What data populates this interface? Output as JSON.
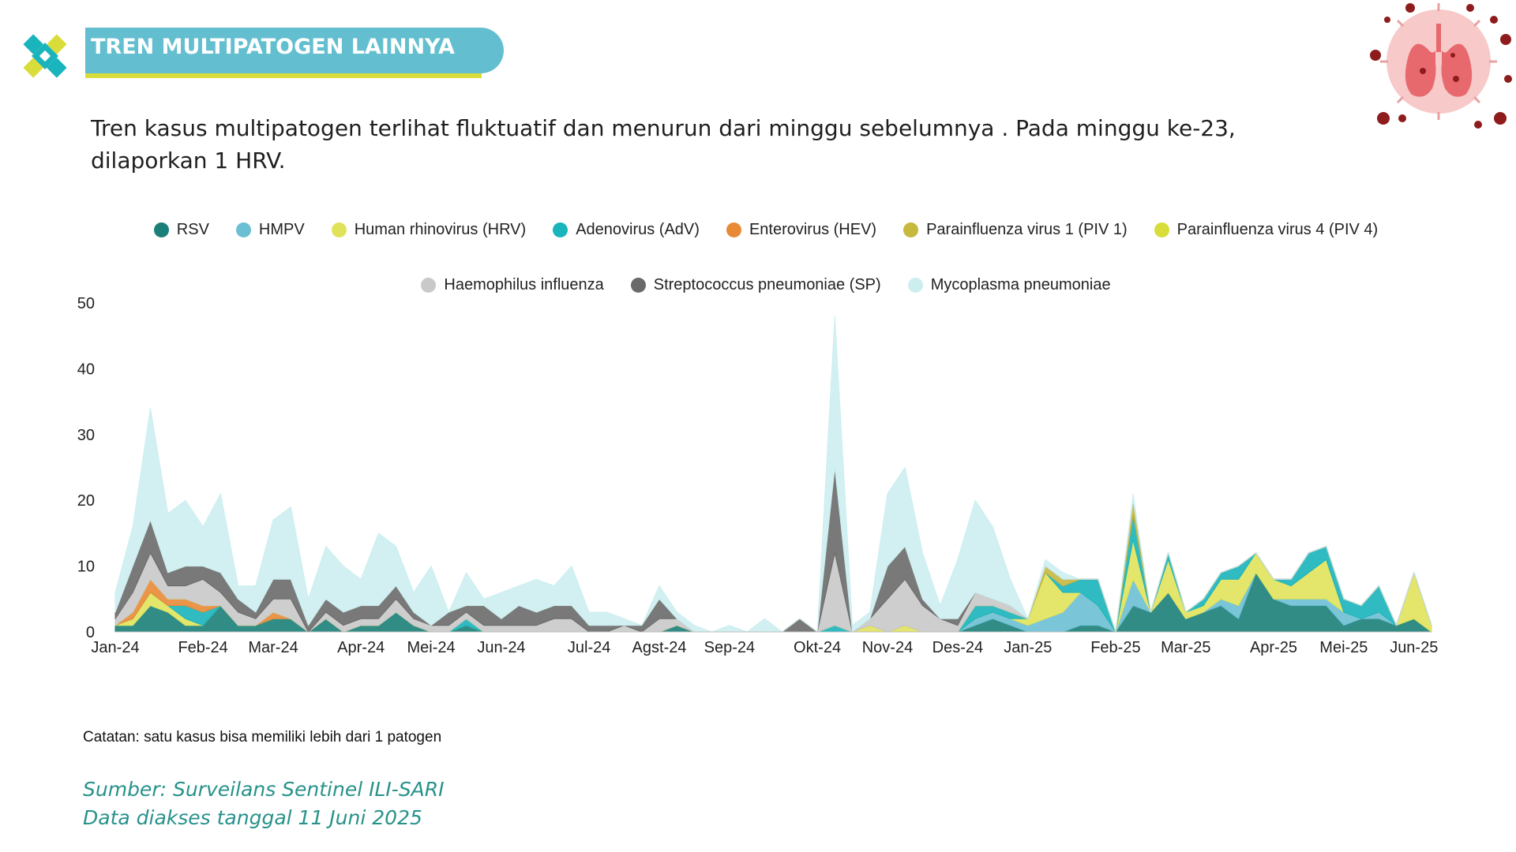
{
  "header": {
    "title": "TREN MULTIPATOGEN LAINNYA",
    "description": "Tren kasus multipatogen terlihat fluktuatif dan menurun dari minggu sebelumnya . Pada minggu ke-23, dilaporkan 1 HRV."
  },
  "icons": {
    "logo": "kemenkes-logo-icon",
    "decoration": "lungs-virus-icon"
  },
  "colors": {
    "title_bar": "#63bfcf",
    "title_underline": "#d9dd3a",
    "source_text": "#27928a"
  },
  "chart_data": {
    "type": "area",
    "stacked": true,
    "title": "",
    "xlabel": "",
    "ylabel": "",
    "ylim": [
      0,
      50
    ],
    "y_ticks": [
      0,
      10,
      20,
      30,
      40,
      50
    ],
    "grid": false,
    "legend_position": "top",
    "x_tick_labels": [
      {
        "label": "Jan-24",
        "week": 0
      },
      {
        "label": "Feb-24",
        "week": 5
      },
      {
        "label": "Mar-24",
        "week": 9
      },
      {
        "label": "Apr-24",
        "week": 14
      },
      {
        "label": "Mei-24",
        "week": 18
      },
      {
        "label": "Jun-24",
        "week": 22
      },
      {
        "label": "Jul-24",
        "week": 27
      },
      {
        "label": "Agst-24",
        "week": 31
      },
      {
        "label": "Sep-24",
        "week": 35
      },
      {
        "label": "Okt-24",
        "week": 40
      },
      {
        "label": "Nov-24",
        "week": 44
      },
      {
        "label": "Des-24",
        "week": 48
      },
      {
        "label": "Jan-25",
        "week": 52
      },
      {
        "label": "Feb-25",
        "week": 57
      },
      {
        "label": "Mar-25",
        "week": 61
      },
      {
        "label": "Apr-25",
        "week": 66
      },
      {
        "label": "Mei-25",
        "week": 70
      },
      {
        "label": "Jun-25",
        "week": 74
      }
    ],
    "series": [
      {
        "name": "RSV",
        "color": "#1a7f78",
        "values": [
          1,
          1,
          4,
          3,
          1,
          1,
          4,
          1,
          1,
          2,
          2,
          0,
          2,
          0,
          1,
          1,
          3,
          1,
          0,
          0,
          1,
          0,
          0,
          0,
          0,
          0,
          0,
          0,
          0,
          0,
          0,
          0,
          1,
          0,
          0,
          0,
          0,
          0,
          0,
          0,
          0,
          0,
          0,
          0,
          0,
          0,
          0,
          0,
          0,
          1,
          2,
          1,
          0,
          0,
          0,
          1,
          1,
          0,
          4,
          3,
          6,
          2,
          3,
          4,
          2,
          9,
          5,
          4,
          4,
          4,
          1,
          2,
          2,
          1,
          2,
          0
        ]
      },
      {
        "name": "HMPV",
        "color": "#6cbfd3",
        "values": [
          0,
          0,
          0,
          0,
          0,
          0,
          0,
          0,
          0,
          0,
          0,
          0,
          0,
          0,
          0,
          0,
          0,
          0,
          0,
          0,
          0,
          0,
          0,
          0,
          0,
          0,
          0,
          0,
          0,
          0,
          0,
          0,
          0,
          0,
          0,
          0,
          0,
          0,
          0,
          0,
          0,
          0,
          0,
          0,
          0,
          0,
          0,
          0,
          0,
          1,
          1,
          1,
          1,
          2,
          3,
          5,
          3,
          0,
          4,
          0,
          0,
          0,
          0,
          1,
          2,
          0,
          0,
          1,
          1,
          1,
          2,
          0,
          1,
          0,
          0,
          0
        ]
      },
      {
        "name": "Human rhinovirus (HRV)",
        "color": "#e0e35a",
        "values": [
          0,
          1,
          2,
          1,
          1,
          0,
          0,
          0,
          0,
          0,
          0,
          0,
          0,
          0,
          0,
          0,
          0,
          0,
          0,
          0,
          0,
          0,
          0,
          0,
          0,
          0,
          0,
          0,
          0,
          0,
          0,
          0,
          0,
          0,
          0,
          0,
          0,
          0,
          0,
          0,
          0,
          0,
          0,
          1,
          0,
          1,
          0,
          0,
          0,
          0,
          0,
          0,
          1,
          7,
          3,
          0,
          0,
          0,
          6,
          0,
          5,
          1,
          1,
          3,
          4,
          3,
          3,
          2,
          4,
          6,
          0,
          0,
          0,
          0,
          7,
          1
        ]
      },
      {
        "name": "Adenovirus (AdV)",
        "color": "#1ab4bd",
        "values": [
          0,
          0,
          0,
          0,
          2,
          2,
          0,
          0,
          0,
          0,
          0,
          0,
          0,
          0,
          0,
          0,
          0,
          0,
          0,
          0,
          1,
          0,
          0,
          0,
          0,
          0,
          0,
          0,
          0,
          0,
          0,
          0,
          0,
          0,
          0,
          0,
          0,
          0,
          0,
          0,
          0,
          1,
          0,
          0,
          0,
          0,
          0,
          0,
          0,
          2,
          1,
          1,
          0,
          0,
          1,
          2,
          4,
          0,
          4,
          0,
          1,
          0,
          1,
          1,
          2,
          0,
          0,
          1,
          3,
          2,
          2,
          2,
          4,
          0,
          0,
          0
        ]
      },
      {
        "name": "Enterovirus (HEV)",
        "color": "#e88a35",
        "values": [
          0,
          1,
          2,
          1,
          1,
          1,
          0,
          0,
          0,
          1,
          0,
          0,
          0,
          0,
          0,
          0,
          0,
          0,
          0,
          0,
          0,
          0,
          0,
          0,
          0,
          0,
          0,
          0,
          0,
          0,
          0,
          0,
          0,
          0,
          0,
          0,
          0,
          0,
          0,
          0,
          0,
          0,
          0,
          0,
          0,
          0,
          0,
          0,
          0,
          0,
          0,
          0,
          0,
          0,
          0,
          0,
          0,
          0,
          0,
          0,
          0,
          0,
          0,
          0,
          0,
          0,
          0,
          0,
          0,
          0,
          0,
          0,
          0,
          0,
          0,
          0
        ]
      },
      {
        "name": "Parainfluenza virus 1 (PIV 1)",
        "color": "#c7b83e",
        "values": [
          0,
          0,
          0,
          0,
          0,
          0,
          0,
          0,
          0,
          0,
          0,
          0,
          0,
          0,
          0,
          0,
          0,
          0,
          0,
          0,
          0,
          0,
          0,
          0,
          0,
          0,
          0,
          0,
          0,
          0,
          0,
          0,
          0,
          0,
          0,
          0,
          0,
          0,
          0,
          0,
          0,
          0,
          0,
          0,
          0,
          0,
          0,
          0,
          0,
          0,
          0,
          0,
          0,
          1,
          1,
          0,
          0,
          0,
          2,
          0,
          0,
          0,
          0,
          0,
          0,
          0,
          0,
          0,
          0,
          0,
          0,
          0,
          0,
          0,
          0,
          0
        ]
      },
      {
        "name": "Parainfluenza virus 4 (PIV 4)",
        "color": "#d9dd3a",
        "values": [
          0,
          0,
          0,
          0,
          0,
          0,
          0,
          0,
          0,
          0,
          0,
          0,
          0,
          0,
          0,
          0,
          0,
          0,
          0,
          0,
          0,
          0,
          0,
          0,
          0,
          0,
          0,
          0,
          0,
          0,
          0,
          0,
          0,
          0,
          0,
          0,
          0,
          0,
          0,
          0,
          0,
          0,
          0,
          0,
          0,
          0,
          0,
          0,
          0,
          0,
          0,
          0,
          0,
          0,
          0,
          0,
          0,
          0,
          0,
          0,
          0,
          0,
          0,
          0,
          0,
          0,
          0,
          0,
          0,
          0,
          0,
          0,
          0,
          0,
          0,
          0
        ]
      },
      {
        "name": "Haemophilus influenza",
        "color": "#c9c9c9",
        "values": [
          1,
          3,
          4,
          2,
          2,
          4,
          2,
          2,
          1,
          2,
          3,
          0,
          1,
          1,
          1,
          1,
          2,
          1,
          1,
          1,
          1,
          1,
          1,
          1,
          1,
          2,
          2,
          0,
          0,
          1,
          0,
          2,
          1,
          0,
          0,
          0,
          0,
          0,
          0,
          0,
          0,
          11,
          0,
          1,
          5,
          7,
          4,
          2,
          1,
          2,
          1,
          1,
          0,
          0,
          0,
          0,
          0,
          0,
          0,
          0,
          0,
          0,
          0,
          0,
          0,
          0,
          0,
          0,
          0,
          0,
          0,
          0,
          0,
          0,
          0,
          0
        ]
      },
      {
        "name": "Streptococcus pneumoniae (SP)",
        "color": "#6a6a6a",
        "values": [
          1,
          4,
          5,
          2,
          3,
          2,
          3,
          2,
          1,
          3,
          3,
          1,
          2,
          2,
          2,
          2,
          2,
          1,
          0,
          2,
          1,
          3,
          1,
          3,
          2,
          2,
          2,
          1,
          1,
          0,
          1,
          3,
          0,
          0,
          0,
          0,
          0,
          0,
          0,
          2,
          0,
          13,
          0,
          0,
          5,
          5,
          1,
          0,
          1,
          0,
          0,
          0,
          0,
          0,
          0,
          0,
          0,
          0,
          0,
          0,
          0,
          0,
          0,
          0,
          0,
          0,
          0,
          0,
          0,
          0,
          0,
          0,
          0,
          0,
          0,
          0
        ]
      },
      {
        "name": "Mycoplasma pneumoniae",
        "color": "#cdeeef",
        "values": [
          3,
          6,
          17,
          9,
          10,
          6,
          12,
          2,
          4,
          9,
          11,
          4,
          8,
          7,
          4,
          11,
          6,
          3,
          9,
          0,
          5,
          1,
          4,
          3,
          5,
          3,
          6,
          2,
          2,
          1,
          0,
          2,
          1,
          1,
          0,
          1,
          0,
          2,
          0,
          0,
          0,
          23,
          1,
          1,
          11,
          12,
          7,
          2,
          9,
          14,
          11,
          4,
          0,
          1,
          1,
          0,
          0,
          0,
          1,
          0,
          0,
          0,
          0,
          0,
          0,
          0,
          0,
          0,
          0,
          0,
          0,
          0,
          0,
          0,
          0,
          0
        ]
      }
    ]
  },
  "legend": [
    {
      "label": "RSV",
      "color": "#1a7f78"
    },
    {
      "label": "HMPV",
      "color": "#6cbfd3"
    },
    {
      "label": "Human rhinovirus (HRV)",
      "color": "#e0e35a"
    },
    {
      "label": "Adenovirus (AdV)",
      "color": "#1ab4bd"
    },
    {
      "label": "Enterovirus (HEV)",
      "color": "#e88a35"
    },
    {
      "label": "Parainfluenza virus 1 (PIV 1)",
      "color": "#c7b83e"
    },
    {
      "label": "Parainfluenza virus 4 (PIV 4)",
      "color": "#d9dd3a"
    },
    {
      "label": "Haemophilus influenza",
      "color": "#c9c9c9"
    },
    {
      "label": "Streptococcus pneumoniae (SP)",
      "color": "#6a6a6a"
    },
    {
      "label": "Mycoplasma pneumoniae",
      "color": "#cdeeef"
    }
  ],
  "footer": {
    "note": "Catatan: satu kasus bisa memiliki lebih dari 1 patogen",
    "source_line1": "Sumber: Surveilans Sentinel ILI-SARI",
    "source_line2": "Data diakses tanggal 11 Juni 2025"
  }
}
